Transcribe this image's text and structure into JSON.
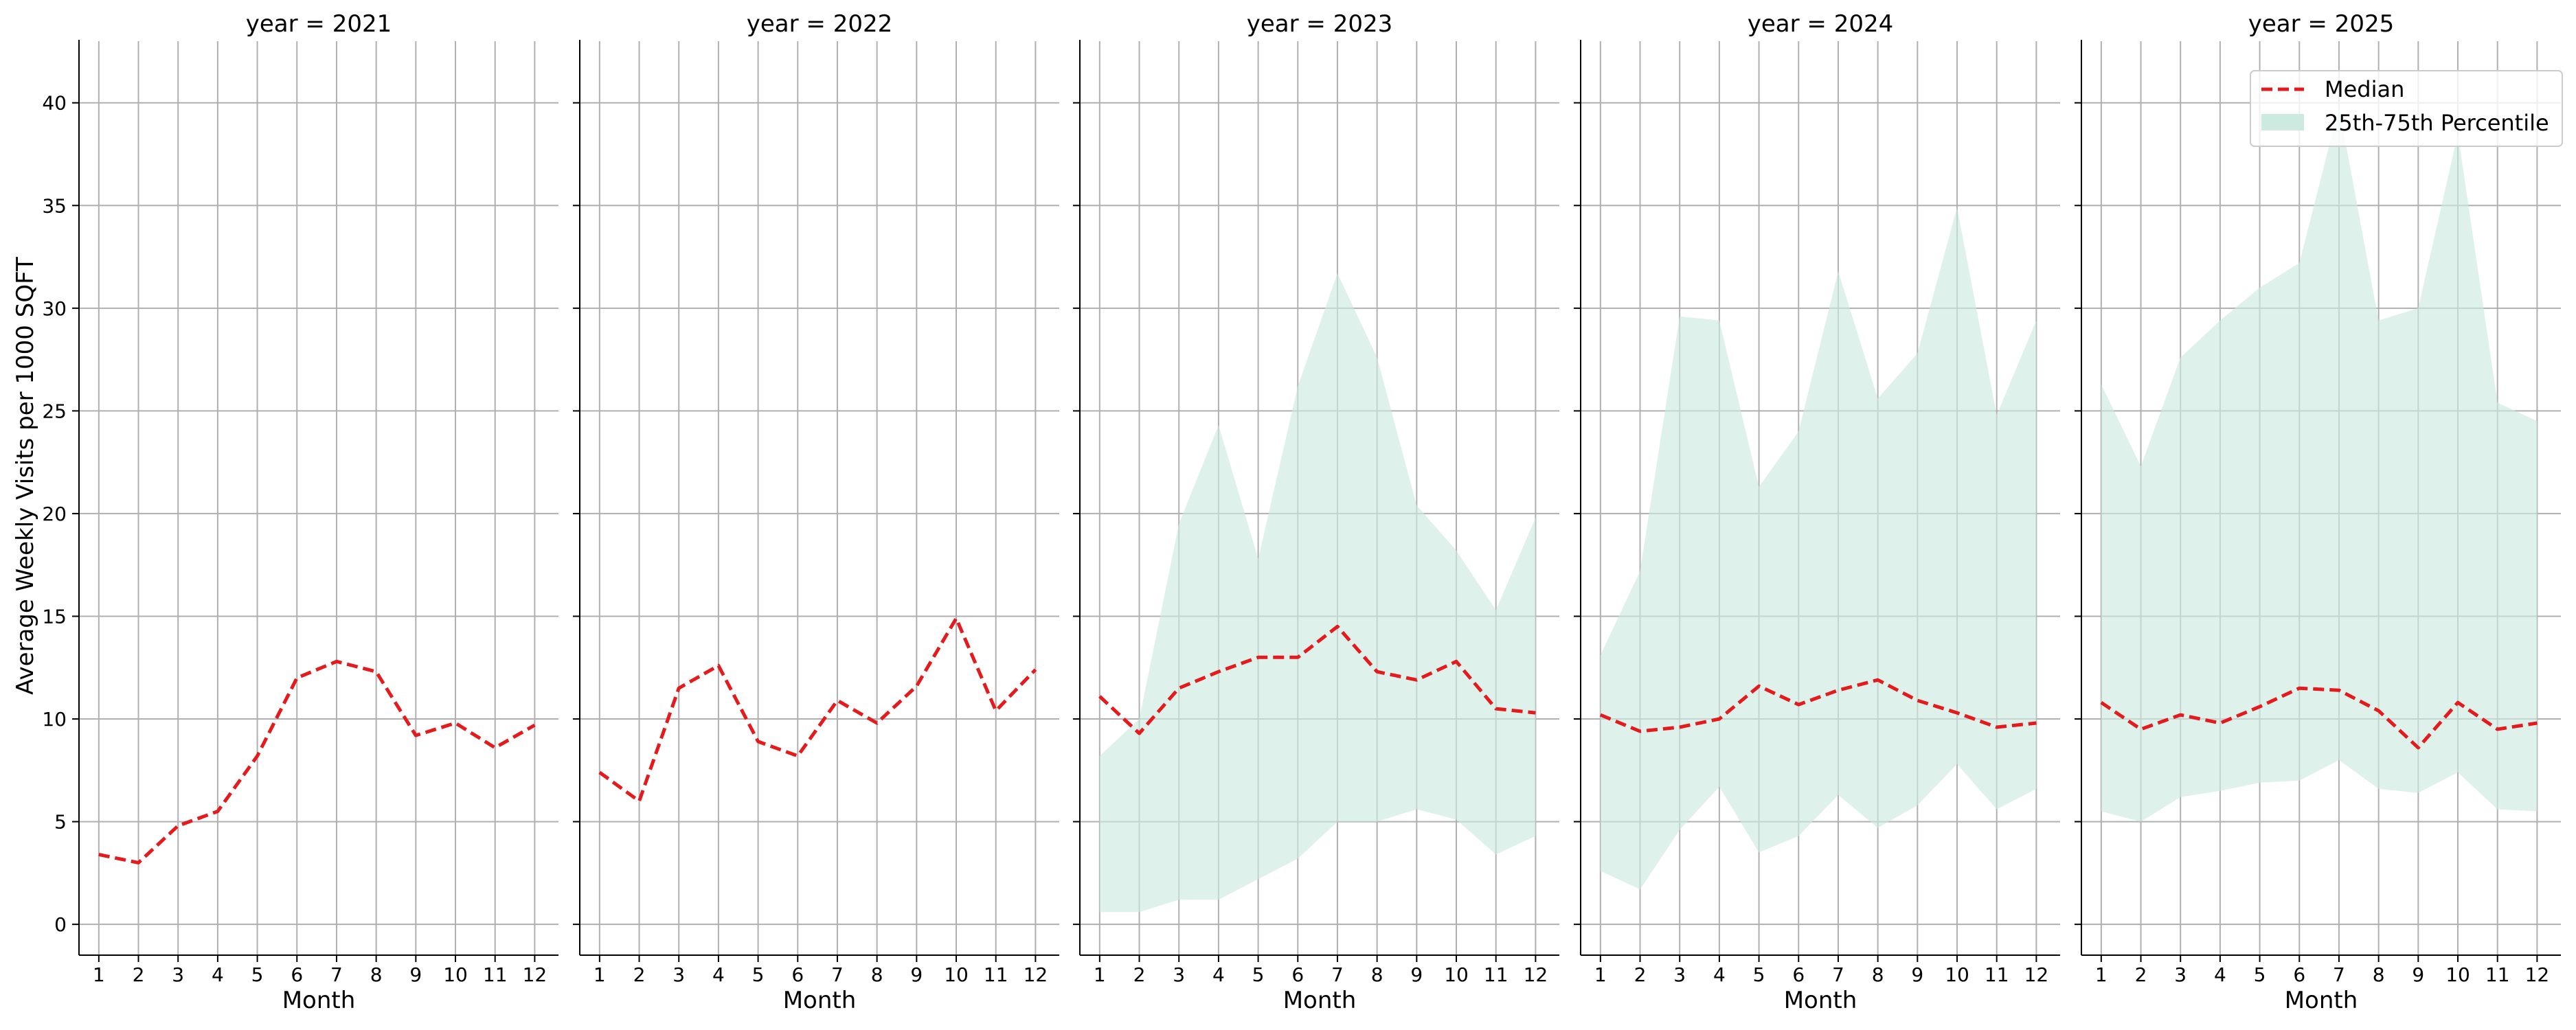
{
  "chart_data": {
    "type": "line",
    "ylabel": "Average Weekly Visits per 1000 SQFT",
    "xlabel": "Month",
    "x": [
      1,
      2,
      3,
      4,
      5,
      6,
      7,
      8,
      9,
      10,
      11,
      12
    ],
    "x_tick_labels": [
      "1",
      "2",
      "3",
      "4",
      "5",
      "6",
      "7",
      "8",
      "9",
      "10",
      "11",
      "12"
    ],
    "y_ticks": [
      0,
      5,
      10,
      15,
      20,
      25,
      30,
      35,
      40
    ],
    "y_tick_labels": [
      "0",
      "5",
      "10",
      "15",
      "20",
      "25",
      "30",
      "35",
      "40"
    ],
    "ylim": [
      -1.5,
      43
    ],
    "xlim": [
      0.5,
      12.6
    ],
    "grid": true,
    "legend": {
      "placement": "top-right",
      "entries": [
        {
          "label": "Median",
          "color": "#e41a1c",
          "style": "dashed-line"
        },
        {
          "label": "25th-75th Percentile",
          "color": "#d6efe8",
          "style": "band"
        }
      ]
    },
    "band_color": "#cdeae1",
    "median_color": "#e41a1c",
    "panels": [
      {
        "title": "year = 2021",
        "median": [
          3.4,
          3.0,
          4.8,
          5.5,
          8.2,
          12.0,
          12.8,
          12.3,
          9.2,
          9.8,
          8.6,
          9.7
        ],
        "p25": null,
        "p75": null
      },
      {
        "title": "year = 2022",
        "median": [
          7.4,
          6.0,
          11.5,
          12.6,
          8.9,
          8.2,
          10.9,
          9.8,
          11.6,
          14.9,
          10.4,
          12.4
        ],
        "p25": null,
        "p75": null
      },
      {
        "title": "year = 2023",
        "median": [
          11.1,
          9.3,
          11.5,
          12.3,
          13.0,
          13.0,
          14.5,
          12.3,
          11.9,
          12.8,
          10.5,
          10.3
        ],
        "p25": [
          0.6,
          0.6,
          1.2,
          1.2,
          2.2,
          3.2,
          5.0,
          5.0,
          5.6,
          5.1,
          3.4,
          4.3
        ],
        "p75": [
          8.2,
          10.0,
          19.5,
          24.3,
          17.8,
          26.2,
          31.7,
          27.6,
          20.4,
          18.2,
          15.3,
          19.8
        ]
      },
      {
        "title": "year = 2024",
        "median": [
          10.2,
          9.4,
          9.6,
          10.0,
          11.6,
          10.7,
          11.4,
          11.9,
          10.9,
          10.3,
          9.6,
          9.8
        ],
        "p25": [
          2.6,
          1.7,
          4.6,
          6.7,
          3.5,
          4.3,
          6.3,
          4.7,
          5.8,
          7.8,
          5.6,
          6.6
        ],
        "p75": [
          13.1,
          17.2,
          29.6,
          29.4,
          21.3,
          24.0,
          31.8,
          25.6,
          27.8,
          34.9,
          24.8,
          29.4
        ]
      },
      {
        "title": "year = 2025",
        "median": [
          10.8,
          9.5,
          10.2,
          9.8,
          10.6,
          11.5,
          11.4,
          10.4,
          8.6,
          10.8,
          9.5,
          9.8
        ],
        "p25": [
          5.5,
          5.0,
          6.2,
          6.5,
          6.9,
          7.0,
          8.0,
          6.6,
          6.4,
          7.4,
          5.6,
          5.5
        ],
        "p75": [
          26.3,
          22.3,
          27.6,
          29.4,
          31.0,
          32.2,
          39.8,
          29.4,
          30.0,
          38.5,
          25.4,
          24.5
        ]
      }
    ]
  }
}
